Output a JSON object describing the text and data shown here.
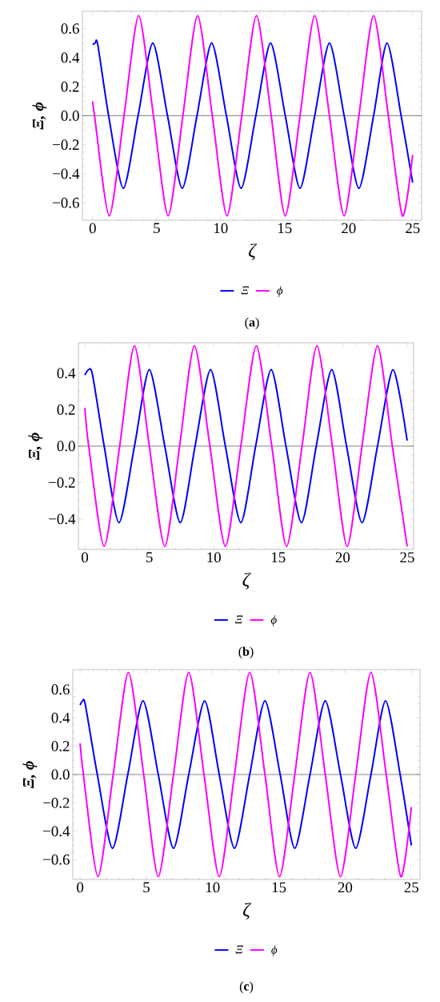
{
  "chart_data": [
    {
      "type": "line",
      "xlabel": "ζ",
      "ylabel": "Ξ, ϕ",
      "annotations": [
        "(**a**)"
      ],
      "legend": "bottom",
      "xlim": [
        -0.8,
        25.7
      ],
      "ylim": [
        -0.72,
        0.72
      ],
      "xticks": [
        0,
        5,
        10,
        15,
        20,
        25
      ],
      "yticks": [
        {
          "value": -0.6,
          "label": "−0.6"
        },
        {
          "value": -0.4,
          "label": "−0.4"
        },
        {
          "value": -0.2,
          "label": "−0.2"
        },
        {
          "value": 0,
          "label": "0.0"
        },
        0.2,
        0.4,
        0.6
      ],
      "ref_lines": [
        {
          "axis": "y",
          "value": 0,
          "color": "#000000"
        }
      ],
      "series": [
        {
          "name": "Ξ",
          "color": "#0000ff",
          "x": [
            0,
            0.2,
            0.4,
            1.25,
            2.4,
            3.55,
            4.7,
            5.85,
            7.0,
            8.15,
            9.3,
            10.45,
            11.6,
            12.75,
            13.9,
            15.05,
            16.2,
            17.35,
            18.5,
            19.65,
            20.8,
            21.95,
            23.0,
            24.1,
            25
          ],
          "values": [
            0.49,
            0.5,
            0.49,
            0,
            -0.5,
            0,
            0.5,
            0,
            -0.5,
            0,
            0.5,
            0,
            -0.5,
            0,
            0.5,
            0,
            -0.5,
            0,
            0.5,
            0,
            -0.5,
            0,
            0.5,
            0,
            -0.46
          ]
        },
        {
          "name": "ϕ",
          "color": "#ff00ff",
          "x": [
            0,
            0.15,
            1.3,
            2.45,
            3.6,
            4.75,
            5.9,
            7.05,
            8.2,
            9.35,
            10.5,
            11.65,
            12.8,
            13.95,
            15.05,
            16.2,
            17.35,
            18.5,
            19.65,
            20.8,
            21.95,
            23.1,
            24.2,
            25
          ],
          "values": [
            0.1,
            0,
            -0.69,
            0,
            0.69,
            0,
            -0.69,
            0,
            0.69,
            0,
            -0.69,
            0,
            0.69,
            0,
            -0.69,
            0,
            0.69,
            0,
            -0.69,
            0,
            0.69,
            0,
            -0.69,
            -0.27
          ]
        }
      ]
    },
    {
      "type": "line",
      "xlabel": "ζ",
      "ylabel": "Ξ, ϕ",
      "annotations": [
        "(**b**)"
      ],
      "legend": "bottom",
      "xlim": [
        -0.5,
        25.5
      ],
      "ylim": [
        -0.567,
        0.567
      ],
      "xticks": [
        0,
        5,
        10,
        15,
        20,
        25
      ],
      "yticks": [
        {
          "value": -0.4,
          "label": "−0.4"
        },
        {
          "value": -0.2,
          "label": "−0.2"
        },
        {
          "value": 0,
          "label": "0.0"
        },
        0.2,
        0.4
      ],
      "ref_lines": [
        {
          "axis": "y",
          "value": 0,
          "color": "#000000"
        }
      ],
      "series": [
        {
          "name": "Ξ",
          "color": "#0000ff",
          "x": [
            0,
            0.3,
            0.6,
            1.5,
            2.65,
            3.85,
            5.0,
            6.2,
            7.4,
            8.55,
            9.75,
            10.9,
            12.1,
            13.25,
            14.45,
            15.6,
            16.8,
            17.95,
            19.15,
            20.3,
            21.5,
            22.7,
            23.9,
            25
          ],
          "values": [
            0.39,
            0.42,
            0.39,
            0,
            -0.42,
            0,
            0.42,
            0,
            -0.42,
            0,
            0.42,
            0,
            -0.42,
            0,
            0.42,
            0,
            -0.42,
            0,
            0.42,
            0,
            -0.42,
            0,
            0.42,
            0.03
          ]
        },
        {
          "name": "ϕ",
          "color": "#ff00ff",
          "x": [
            0,
            0.3,
            1.5,
            2.7,
            3.85,
            5.0,
            6.2,
            7.35,
            8.5,
            9.7,
            10.9,
            12.1,
            13.3,
            14.5,
            15.65,
            16.85,
            18.0,
            19.2,
            20.35,
            21.5,
            22.7,
            23.85,
            25
          ],
          "values": [
            0.21,
            0,
            -0.55,
            0,
            0.55,
            0,
            -0.55,
            0,
            0.55,
            0,
            -0.55,
            0,
            0.55,
            0,
            -0.55,
            0,
            0.55,
            0,
            -0.55,
            0,
            0.55,
            0,
            -0.55
          ]
        }
      ]
    },
    {
      "type": "line",
      "xlabel": "ζ",
      "ylabel": "Ξ, ϕ",
      "annotations": [
        "(**c**)"
      ],
      "legend": "bottom",
      "xlim": [
        -0.55,
        25.65
      ],
      "ylim": [
        -0.74,
        0.74
      ],
      "xticks": [
        0,
        5,
        10,
        15,
        20,
        25
      ],
      "yticks": [
        {
          "value": -0.6,
          "label": "−0.6"
        },
        {
          "value": -0.4,
          "label": "−0.4"
        },
        {
          "value": -0.2,
          "label": "−0.2"
        },
        {
          "value": 0,
          "label": "0.0"
        },
        0.2,
        0.4,
        0.6
      ],
      "ref_lines": [
        {
          "axis": "y",
          "value": 0,
          "color": "#000000"
        }
      ],
      "series": [
        {
          "name": "Ξ",
          "color": "#0000ff",
          "x": [
            0,
            0.2,
            0.4,
            1.3,
            2.45,
            3.6,
            4.75,
            5.9,
            7.05,
            8.2,
            9.4,
            10.5,
            11.65,
            12.8,
            13.95,
            15.1,
            16.2,
            17.35,
            18.5,
            19.65,
            20.8,
            21.95,
            23.05,
            24.15,
            25
          ],
          "values": [
            0.49,
            0.52,
            0.49,
            0,
            -0.52,
            0,
            0.52,
            0,
            -0.52,
            0,
            0.52,
            0,
            -0.52,
            0,
            0.52,
            0,
            -0.52,
            0,
            0.52,
            0,
            -0.52,
            0,
            0.52,
            0,
            -0.5
          ]
        },
        {
          "name": "ϕ",
          "color": "#ff00ff",
          "x": [
            0,
            0.25,
            1.35,
            2.5,
            3.65,
            4.8,
            5.9,
            7.05,
            8.2,
            9.35,
            10.5,
            11.65,
            12.8,
            13.95,
            15.05,
            16.2,
            17.35,
            18.5,
            19.65,
            20.8,
            21.95,
            23.1,
            24.2,
            25
          ],
          "values": [
            0.22,
            0,
            -0.72,
            0,
            0.72,
            0,
            -0.72,
            0,
            0.72,
            0,
            -0.72,
            0,
            0.72,
            0,
            -0.72,
            0,
            0.72,
            0,
            -0.72,
            0,
            0.72,
            0,
            -0.72,
            -0.23
          ]
        }
      ]
    }
  ]
}
